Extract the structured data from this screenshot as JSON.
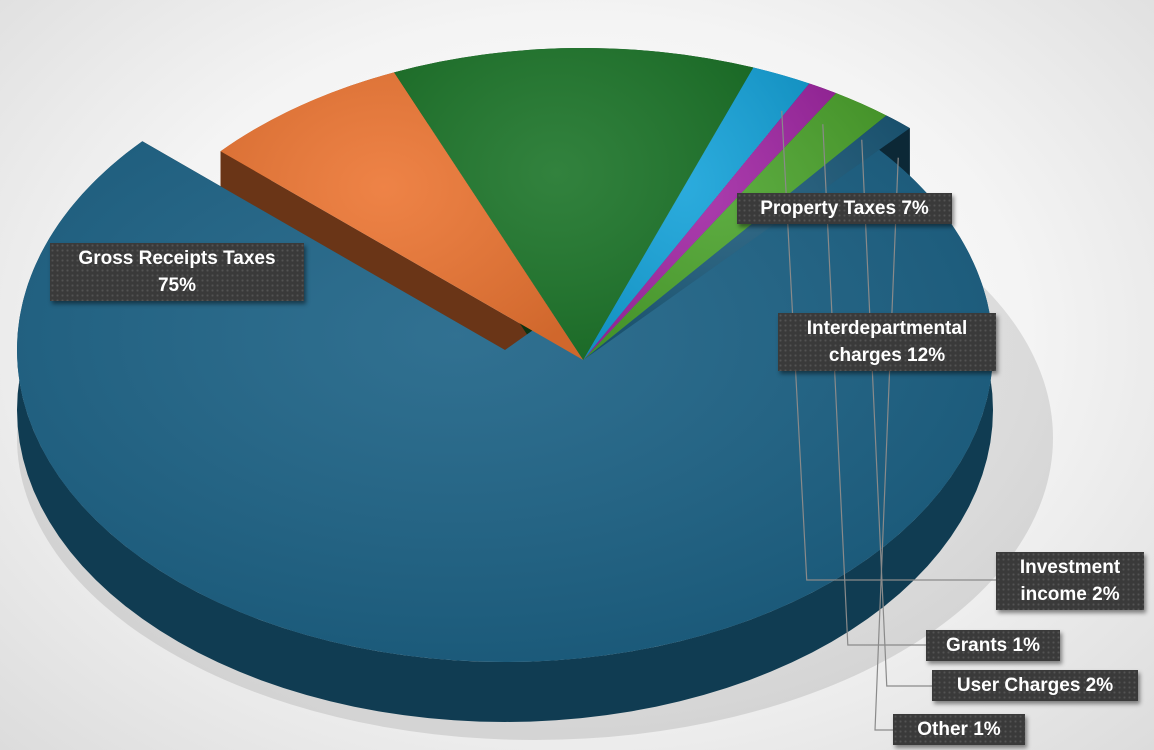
{
  "chart_data": {
    "type": "pie",
    "title": "",
    "slices": [
      {
        "name": "Gross Receipts Taxes",
        "value": 75,
        "label_lines": [
          "Gross Receipts Taxes",
          "75%"
        ],
        "color": "#1a6185"
      },
      {
        "name": "Property Taxes",
        "value": 7,
        "label_lines": [
          "Property Taxes 7%"
        ],
        "color": "#ec7532"
      },
      {
        "name": "Interdepartmental charges",
        "value": 12,
        "label_lines": [
          "Interdepartmental",
          "charges 12%"
        ],
        "color": "#1b7428"
      },
      {
        "name": "Investment income",
        "value": 2,
        "label_lines": [
          "Investment",
          "income 2%"
        ],
        "color": "#14a2d9"
      },
      {
        "name": "Grants",
        "value": 1,
        "label_lines": [
          "Grants 1%"
        ],
        "color": "#a127a4"
      },
      {
        "name": "User Charges",
        "value": 2,
        "label_lines": [
          "User Charges 2%"
        ],
        "color": "#4ba32c"
      },
      {
        "name": "Other",
        "value": 1,
        "label_lines": [
          "Other 1%"
        ],
        "color": "#1a5878"
      }
    ],
    "legend": "none",
    "data_labels": "callout boxes"
  }
}
